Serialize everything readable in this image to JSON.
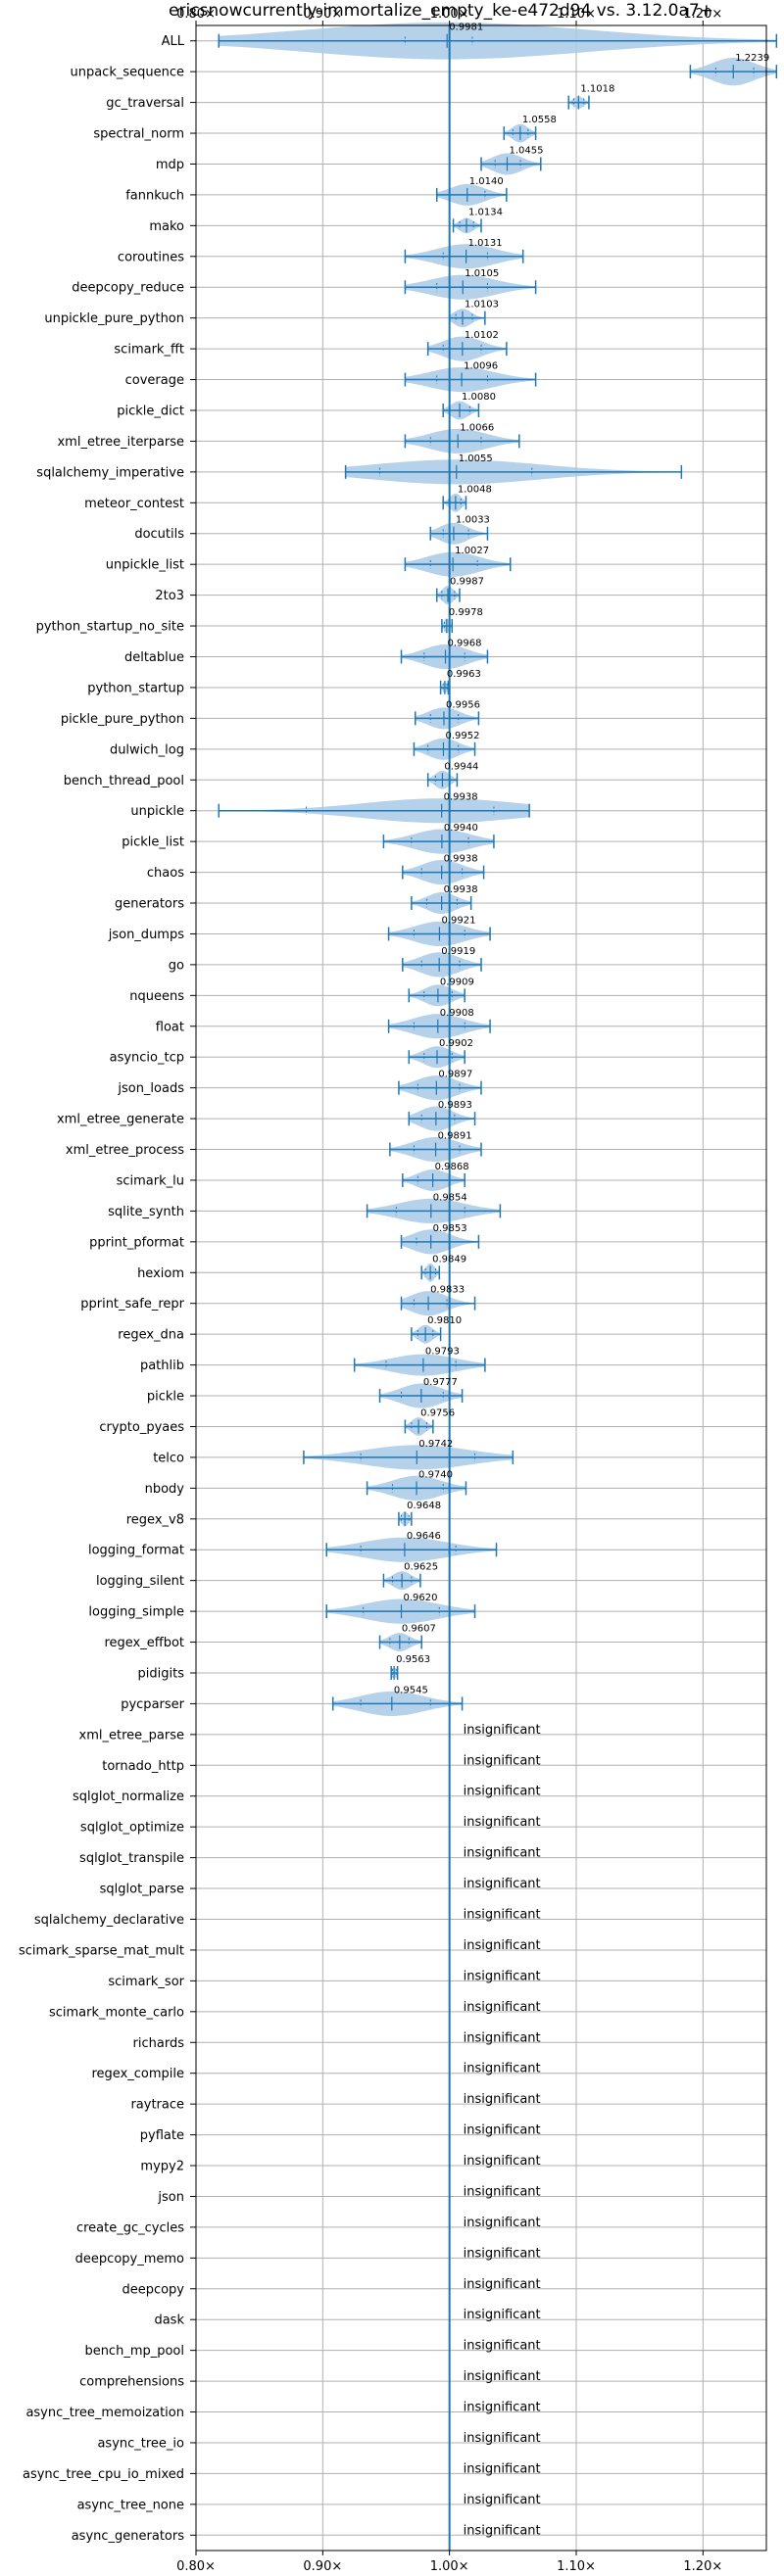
{
  "chart_data": {
    "type": "violin",
    "title": "ericsnowcurrently-immortalize_empty_ke-e472d94 vs. 3.12.0a7+",
    "xlim": [
      0.8,
      1.25
    ],
    "xticks": [
      0.8,
      0.9,
      1.0,
      1.1,
      1.2
    ],
    "xtick_labels": [
      "0.80×",
      "0.90×",
      "1.00×",
      "1.10×",
      "1.20×"
    ],
    "grid": true,
    "reference_line": 1.0,
    "colors": {
      "line": "#1f77b4",
      "violin": "#a9c9e6",
      "grid": "#b0b0b0"
    },
    "insignificant_label": "insignificant",
    "benchmarks": [
      {
        "name": "ALL",
        "median": 0.9981,
        "min": 0.818,
        "max": 1.258,
        "q1": 0.965,
        "q3": 1.018,
        "width": 1.2
      },
      {
        "name": "unpack_sequence",
        "median": 1.2239,
        "min": 1.19,
        "max": 1.258,
        "q1": 1.21,
        "q3": 1.24,
        "width": 0.9
      },
      {
        "name": "gc_traversal",
        "median": 1.1018,
        "min": 1.094,
        "max": 1.11,
        "q1": 1.098,
        "q3": 1.106,
        "width": 0.4
      },
      {
        "name": "spectral_norm",
        "median": 1.0558,
        "min": 1.043,
        "max": 1.068,
        "q1": 1.05,
        "q3": 1.062,
        "width": 0.6
      },
      {
        "name": "mdp",
        "median": 1.0455,
        "min": 1.025,
        "max": 1.072,
        "q1": 1.036,
        "q3": 1.056,
        "width": 0.7
      },
      {
        "name": "fannkuch",
        "median": 1.014,
        "min": 0.99,
        "max": 1.045,
        "q1": 1.0,
        "q3": 1.028,
        "width": 0.7
      },
      {
        "name": "mako",
        "median": 1.0134,
        "min": 1.003,
        "max": 1.025,
        "q1": 1.008,
        "q3": 1.019,
        "width": 0.5
      },
      {
        "name": "coroutines",
        "median": 1.0131,
        "min": 0.965,
        "max": 1.058,
        "q1": 0.995,
        "q3": 1.03,
        "width": 0.8
      },
      {
        "name": "deepcopy_reduce",
        "median": 1.0105,
        "min": 0.965,
        "max": 1.068,
        "q1": 0.99,
        "q3": 1.03,
        "width": 0.8
      },
      {
        "name": "unpickle_pure_python",
        "median": 1.0103,
        "min": 1.0,
        "max": 1.028,
        "q1": 1.005,
        "q3": 1.018,
        "width": 0.6
      },
      {
        "name": "scimark_fft",
        "median": 1.0102,
        "min": 0.983,
        "max": 1.045,
        "q1": 0.995,
        "q3": 1.025,
        "width": 0.8
      },
      {
        "name": "coverage",
        "median": 1.0096,
        "min": 0.965,
        "max": 1.068,
        "q1": 0.99,
        "q3": 1.03,
        "width": 0.8
      },
      {
        "name": "pickle_dict",
        "median": 1.008,
        "min": 0.995,
        "max": 1.023,
        "q1": 1.0,
        "q3": 1.016,
        "width": 0.6
      },
      {
        "name": "xml_etree_iterparse",
        "median": 1.0066,
        "min": 0.965,
        "max": 1.055,
        "q1": 0.985,
        "q3": 1.025,
        "width": 0.8
      },
      {
        "name": "sqlalchemy_imperative",
        "median": 1.0055,
        "min": 0.918,
        "max": 1.183,
        "q1": 0.945,
        "q3": 1.065,
        "width": 0.8
      },
      {
        "name": "meteor_contest",
        "median": 1.0048,
        "min": 0.995,
        "max": 1.013,
        "q1": 1.0,
        "q3": 1.009,
        "width": 0.6
      },
      {
        "name": "docutils",
        "median": 1.0033,
        "min": 0.985,
        "max": 1.03,
        "q1": 0.995,
        "q3": 1.015,
        "width": 0.7
      },
      {
        "name": "unpickle_list",
        "median": 1.0027,
        "min": 0.965,
        "max": 1.048,
        "q1": 0.985,
        "q3": 1.022,
        "width": 0.8
      },
      {
        "name": "2to3",
        "median": 0.9987,
        "min": 0.99,
        "max": 1.008,
        "q1": 0.994,
        "q3": 1.004,
        "width": 0.6
      },
      {
        "name": "python_startup_no_site",
        "median": 0.9978,
        "min": 0.994,
        "max": 1.002,
        "q1": 0.996,
        "q3": 1.0,
        "width": 0.5
      },
      {
        "name": "deltablue",
        "median": 0.9968,
        "min": 0.962,
        "max": 1.03,
        "q1": 0.98,
        "q3": 1.012,
        "width": 0.8
      },
      {
        "name": "python_startup",
        "median": 0.9963,
        "min": 0.993,
        "max": 0.999,
        "q1": 0.995,
        "q3": 0.998,
        "width": 0.4
      },
      {
        "name": "pickle_pure_python",
        "median": 0.9956,
        "min": 0.973,
        "max": 1.023,
        "q1": 0.985,
        "q3": 1.007,
        "width": 0.7
      },
      {
        "name": "dulwich_log",
        "median": 0.9952,
        "min": 0.972,
        "max": 1.02,
        "q1": 0.983,
        "q3": 1.007,
        "width": 0.7
      },
      {
        "name": "bench_thread_pool",
        "median": 0.9944,
        "min": 0.983,
        "max": 1.006,
        "q1": 0.989,
        "q3": 1.0,
        "width": 0.6
      },
      {
        "name": "unpickle",
        "median": 0.9938,
        "min": 0.818,
        "max": 1.063,
        "q1": 0.887,
        "q3": 1.035,
        "width": 0.8
      },
      {
        "name": "pickle_list",
        "median": 0.994,
        "min": 0.948,
        "max": 1.035,
        "q1": 0.97,
        "q3": 1.015,
        "width": 0.8
      },
      {
        "name": "chaos",
        "median": 0.9938,
        "min": 0.963,
        "max": 1.027,
        "q1": 0.978,
        "q3": 1.01,
        "width": 0.8
      },
      {
        "name": "generators",
        "median": 0.9938,
        "min": 0.97,
        "max": 1.017,
        "q1": 0.982,
        "q3": 1.006,
        "width": 0.7
      },
      {
        "name": "json_dumps",
        "median": 0.9921,
        "min": 0.952,
        "max": 1.032,
        "q1": 0.972,
        "q3": 1.012,
        "width": 0.8
      },
      {
        "name": "go",
        "median": 0.9919,
        "min": 0.963,
        "max": 1.025,
        "q1": 0.978,
        "q3": 1.008,
        "width": 0.8
      },
      {
        "name": "nqueens",
        "median": 0.9909,
        "min": 0.968,
        "max": 1.012,
        "q1": 0.98,
        "q3": 1.002,
        "width": 0.7
      },
      {
        "name": "float",
        "median": 0.9908,
        "min": 0.952,
        "max": 1.032,
        "q1": 0.972,
        "q3": 1.012,
        "width": 0.8
      },
      {
        "name": "asyncio_tcp",
        "median": 0.9902,
        "min": 0.968,
        "max": 1.012,
        "q1": 0.98,
        "q3": 1.002,
        "width": 0.7
      },
      {
        "name": "json_loads",
        "median": 0.9897,
        "min": 0.96,
        "max": 1.025,
        "q1": 0.975,
        "q3": 1.008,
        "width": 0.8
      },
      {
        "name": "xml_etree_generate",
        "median": 0.9893,
        "min": 0.968,
        "max": 1.02,
        "q1": 0.978,
        "q3": 1.004,
        "width": 0.8
      },
      {
        "name": "xml_etree_process",
        "median": 0.9891,
        "min": 0.953,
        "max": 1.025,
        "q1": 0.972,
        "q3": 1.008,
        "width": 0.8
      },
      {
        "name": "scimark_lu",
        "median": 0.9868,
        "min": 0.963,
        "max": 1.012,
        "q1": 0.975,
        "q3": 1.0,
        "width": 0.7
      },
      {
        "name": "sqlite_synth",
        "median": 0.9854,
        "min": 0.935,
        "max": 1.04,
        "q1": 0.958,
        "q3": 1.012,
        "width": 0.8
      },
      {
        "name": "pprint_pformat",
        "median": 0.9853,
        "min": 0.962,
        "max": 1.023,
        "q1": 0.974,
        "q3": 1.0,
        "width": 0.8
      },
      {
        "name": "hexiom",
        "median": 0.9849,
        "min": 0.978,
        "max": 0.992,
        "q1": 0.981,
        "q3": 0.989,
        "width": 0.6
      },
      {
        "name": "pprint_safe_repr",
        "median": 0.9833,
        "min": 0.962,
        "max": 1.02,
        "q1": 0.972,
        "q3": 0.998,
        "width": 0.8
      },
      {
        "name": "regex_dna",
        "median": 0.981,
        "min": 0.97,
        "max": 0.993,
        "q1": 0.975,
        "q3": 0.987,
        "width": 0.6
      },
      {
        "name": "pathlib",
        "median": 0.9793,
        "min": 0.925,
        "max": 1.028,
        "q1": 0.95,
        "q3": 1.005,
        "width": 0.7
      },
      {
        "name": "pickle",
        "median": 0.9777,
        "min": 0.945,
        "max": 1.01,
        "q1": 0.962,
        "q3": 0.995,
        "width": 0.8
      },
      {
        "name": "crypto_pyaes",
        "median": 0.9756,
        "min": 0.965,
        "max": 0.987,
        "q1": 0.97,
        "q3": 0.982,
        "width": 0.6
      },
      {
        "name": "telco",
        "median": 0.9742,
        "min": 0.885,
        "max": 1.05,
        "q1": 0.93,
        "q3": 1.02,
        "width": 0.8
      },
      {
        "name": "nbody",
        "median": 0.974,
        "min": 0.935,
        "max": 1.013,
        "q1": 0.955,
        "q3": 0.995,
        "width": 0.8
      },
      {
        "name": "regex_v8",
        "median": 0.9648,
        "min": 0.96,
        "max": 0.97,
        "q1": 0.962,
        "q3": 0.968,
        "width": 0.5
      },
      {
        "name": "logging_format",
        "median": 0.9646,
        "min": 0.903,
        "max": 1.037,
        "q1": 0.93,
        "q3": 1.005,
        "width": 0.8
      },
      {
        "name": "logging_silent",
        "median": 0.9625,
        "min": 0.948,
        "max": 0.977,
        "q1": 0.955,
        "q3": 0.97,
        "width": 0.6
      },
      {
        "name": "logging_simple",
        "median": 0.962,
        "min": 0.903,
        "max": 1.02,
        "q1": 0.932,
        "q3": 0.992,
        "width": 0.8
      },
      {
        "name": "regex_effbot",
        "median": 0.9607,
        "min": 0.945,
        "max": 0.978,
        "q1": 0.953,
        "q3": 0.968,
        "width": 0.6
      },
      {
        "name": "pidigits",
        "median": 0.9563,
        "min": 0.954,
        "max": 0.959,
        "q1": 0.955,
        "q3": 0.958,
        "width": 0.4
      },
      {
        "name": "pycparser",
        "median": 0.9545,
        "min": 0.908,
        "max": 1.01,
        "q1": 0.93,
        "q3": 0.985,
        "width": 0.8
      },
      {
        "name": "xml_etree_parse",
        "insignificant": true
      },
      {
        "name": "tornado_http",
        "insignificant": true
      },
      {
        "name": "sqlglot_normalize",
        "insignificant": true
      },
      {
        "name": "sqlglot_optimize",
        "insignificant": true
      },
      {
        "name": "sqlglot_transpile",
        "insignificant": true
      },
      {
        "name": "sqlglot_parse",
        "insignificant": true
      },
      {
        "name": "sqlalchemy_declarative",
        "insignificant": true
      },
      {
        "name": "scimark_sparse_mat_mult",
        "insignificant": true
      },
      {
        "name": "scimark_sor",
        "insignificant": true
      },
      {
        "name": "scimark_monte_carlo",
        "insignificant": true
      },
      {
        "name": "richards",
        "insignificant": true
      },
      {
        "name": "regex_compile",
        "insignificant": true
      },
      {
        "name": "raytrace",
        "insignificant": true
      },
      {
        "name": "pyflate",
        "insignificant": true
      },
      {
        "name": "mypy2",
        "insignificant": true
      },
      {
        "name": "json",
        "insignificant": true
      },
      {
        "name": "create_gc_cycles",
        "insignificant": true
      },
      {
        "name": "deepcopy_memo",
        "insignificant": true
      },
      {
        "name": "deepcopy",
        "insignificant": true
      },
      {
        "name": "dask",
        "insignificant": true
      },
      {
        "name": "bench_mp_pool",
        "insignificant": true
      },
      {
        "name": "comprehensions",
        "insignificant": true
      },
      {
        "name": "async_tree_memoization",
        "insignificant": true
      },
      {
        "name": "async_tree_io",
        "insignificant": true
      },
      {
        "name": "async_tree_cpu_io_mixed",
        "insignificant": true
      },
      {
        "name": "async_tree_none",
        "insignificant": true
      },
      {
        "name": "async_generators",
        "insignificant": true
      }
    ]
  }
}
